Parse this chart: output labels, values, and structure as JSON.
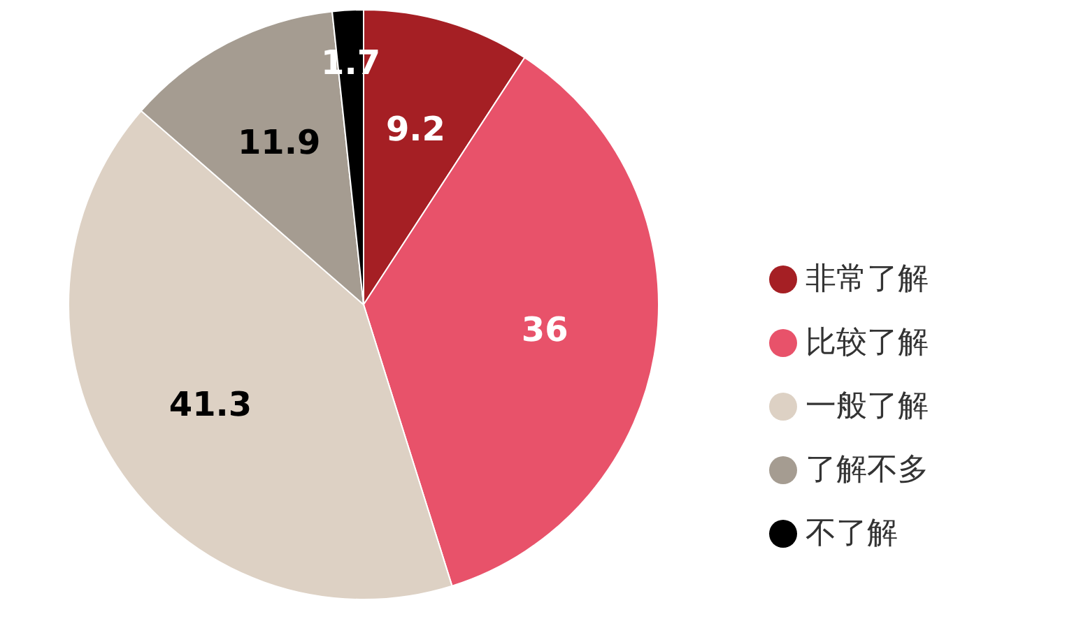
{
  "chart_data": {
    "type": "pie",
    "categories": [
      "非常了解",
      "比较了解",
      "一般了解",
      "了解不多",
      "不了解"
    ],
    "values": [
      9.2,
      36,
      41.3,
      11.9,
      1.7
    ],
    "colors": [
      "#a51f24",
      "#e8526a",
      "#ddd1c4",
      "#a59c91",
      "#000000"
    ],
    "data_labels": true,
    "legend": "right"
  }
}
